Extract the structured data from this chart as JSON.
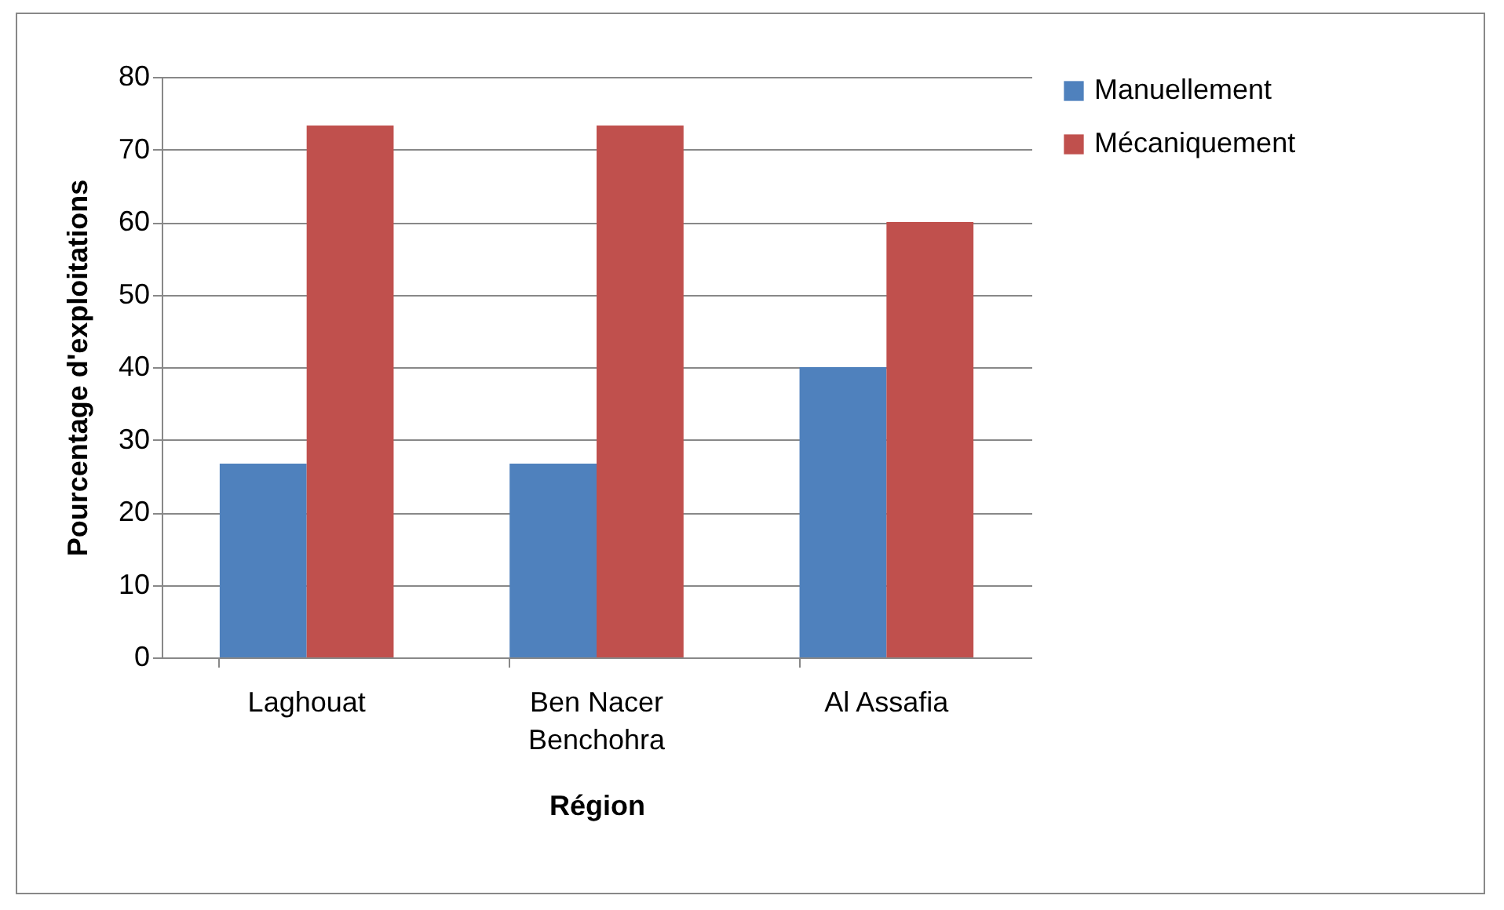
{
  "chart_data": {
    "type": "bar",
    "xlabel": "Région",
    "ylabel": "Pourcentage d'exploitations",
    "categories": [
      "Laghouat",
      "Ben Nacer Benchohra",
      "Al Assafia"
    ],
    "series": [
      {
        "name": "Manuellement",
        "color": "#4f81bd",
        "values": [
          26.7,
          26.7,
          40
        ]
      },
      {
        "name": "Mécaniquement",
        "color": "#c0504d",
        "values": [
          73.3,
          73.3,
          60
        ]
      }
    ],
    "ylim": [
      0,
      80
    ],
    "yticks": [
      0,
      10,
      20,
      30,
      40,
      50,
      60,
      70,
      80
    ],
    "grid": "y",
    "legend": "right"
  }
}
